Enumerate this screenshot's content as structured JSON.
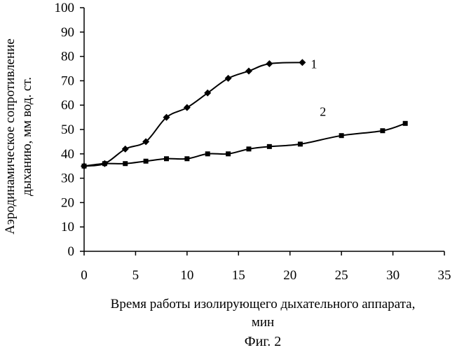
{
  "chart_data": {
    "type": "line",
    "x_ticks": [
      "0",
      "5",
      "10",
      "15",
      "20",
      "25",
      "30",
      "35"
    ],
    "y_ticks": [
      "0",
      "10",
      "20",
      "30",
      "40",
      "50",
      "60",
      "70",
      "80",
      "90",
      "100"
    ],
    "xlim": [
      0,
      35
    ],
    "ylim": [
      0,
      100
    ],
    "xlabel_line1": "Время работы изолирующего дыхательного аппарата,",
    "xlabel_line2": "мин",
    "ylabel_line1": "Аэродинамическое сопротивление",
    "ylabel_line2": "дыханию, мм вод. ст.",
    "grid": false,
    "series": [
      {
        "name": "1",
        "marker": "diamond",
        "x": [
          0,
          2,
          4,
          6,
          8,
          10,
          12,
          14,
          16,
          18,
          21.2
        ],
        "y": [
          35,
          36,
          42,
          45,
          55,
          59,
          65,
          71,
          74,
          77,
          77.5
        ]
      },
      {
        "name": "2",
        "marker": "square",
        "x": [
          0,
          2,
          4,
          6,
          8,
          10,
          12,
          14,
          16,
          18,
          21,
          25,
          29,
          31.2
        ],
        "y": [
          35,
          36,
          36,
          37,
          38,
          38,
          40,
          40,
          42,
          43,
          44,
          47.5,
          49.5,
          52.5
        ]
      }
    ]
  },
  "caption": "Фиг. 2"
}
